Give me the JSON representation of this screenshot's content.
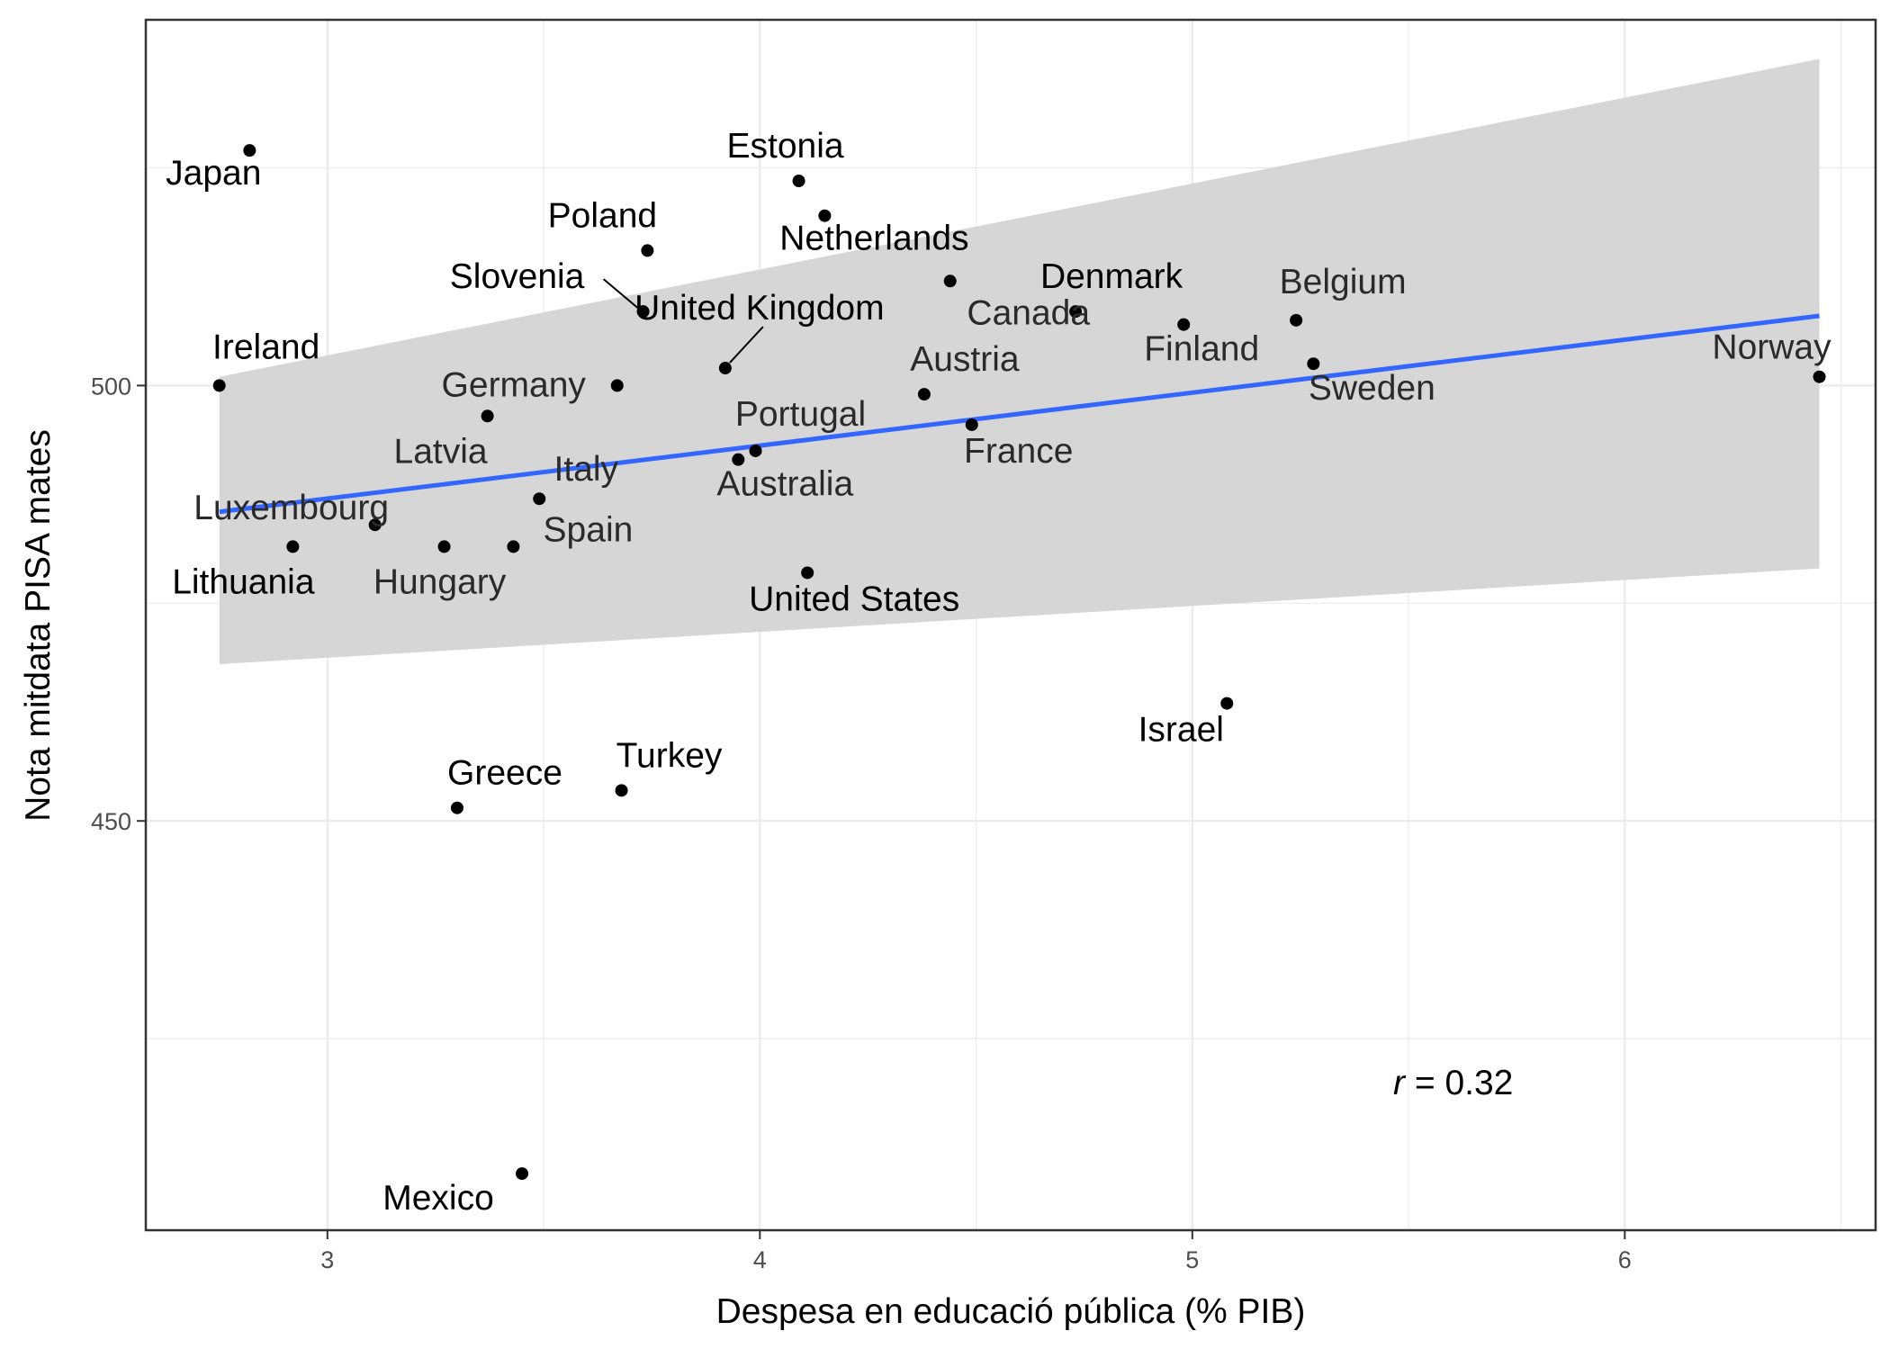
{
  "chart_data": {
    "type": "scatter",
    "title": "",
    "xlabel": "Despesa en educació pública (% PIB)",
    "ylabel": "Nota mitdata PISA mates",
    "xlim": [
      2.58,
      6.58
    ],
    "ylim": [
      403,
      542
    ],
    "x_ticks": [
      3,
      4,
      5,
      6
    ],
    "y_ticks": [
      450,
      500
    ],
    "grid": true,
    "annotation": {
      "italic": "r",
      "rest": " = 0.32"
    },
    "points": [
      {
        "name": "Japan",
        "x": 2.82,
        "y": 527
      },
      {
        "name": "Estonia",
        "x": 4.09,
        "y": 523.5
      },
      {
        "name": "Netherlands",
        "x": 4.15,
        "y": 519.5
      },
      {
        "name": "Poland",
        "x": 3.74,
        "y": 515.5
      },
      {
        "name": "Denmark",
        "x": 4.73,
        "y": 508.5
      },
      {
        "name": "Slovenia",
        "x": 3.73,
        "y": 508.5
      },
      {
        "name": "Belgium",
        "x": 5.24,
        "y": 507.5
      },
      {
        "name": "Canada",
        "x": 4.44,
        "y": 512
      },
      {
        "name": "Finland",
        "x": 4.98,
        "y": 507
      },
      {
        "name": "United Kingdom",
        "x": 3.92,
        "y": 502
      },
      {
        "name": "Sweden",
        "x": 5.28,
        "y": 502.5
      },
      {
        "name": "Norway",
        "x": 6.45,
        "y": 501
      },
      {
        "name": "Ireland",
        "x": 2.75,
        "y": 500
      },
      {
        "name": "Germany",
        "x": 3.67,
        "y": 500
      },
      {
        "name": "Austria",
        "x": 4.38,
        "y": 499
      },
      {
        "name": "Latvia",
        "x": 3.37,
        "y": 496.5
      },
      {
        "name": "France",
        "x": 4.49,
        "y": 495.5
      },
      {
        "name": "Portugal",
        "x": 3.99,
        "y": 492.5
      },
      {
        "name": "Australia",
        "x": 3.95,
        "y": 491.5
      },
      {
        "name": "Italy",
        "x": 3.49,
        "y": 487
      },
      {
        "name": "Luxembourg",
        "x": 3.11,
        "y": 484
      },
      {
        "name": "Lithuania",
        "x": 2.92,
        "y": 481.5
      },
      {
        "name": "Hungary",
        "x": 3.27,
        "y": 481.5
      },
      {
        "name": "Spain",
        "x": 3.43,
        "y": 481.5
      },
      {
        "name": "United States",
        "x": 4.11,
        "y": 478.5
      },
      {
        "name": "Israel",
        "x": 5.08,
        "y": 463.5
      },
      {
        "name": "Turkey",
        "x": 3.68,
        "y": 453.5
      },
      {
        "name": "Greece",
        "x": 3.3,
        "y": 451.5
      },
      {
        "name": "Mexico",
        "x": 3.45,
        "y": 409.5
      }
    ],
    "regression": {
      "x": [
        2.75,
        6.45
      ],
      "y": [
        485.5,
        508
      ],
      "band_upper": [
        501,
        537.5
      ],
      "band_lower": [
        468,
        479
      ]
    },
    "colors": {
      "line": "#3366FF",
      "band": "#d4d4d4",
      "point": "#000000",
      "grid": "#ebebeb",
      "panel_border": "#333333"
    }
  }
}
